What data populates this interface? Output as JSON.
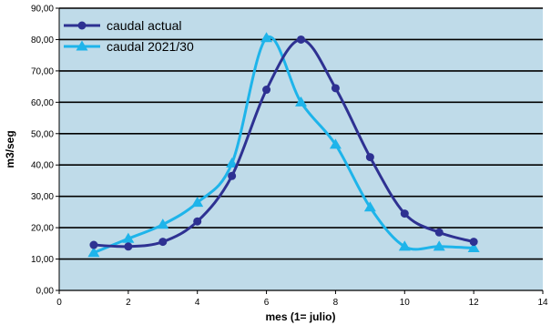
{
  "chart_data": {
    "type": "line",
    "xlabel": "mes (1= julio)",
    "ylabel": "m3/seg",
    "xlim": [
      0,
      14
    ],
    "ylim": [
      0,
      90
    ],
    "x_ticks": [
      "0",
      "2",
      "4",
      "6",
      "8",
      "10",
      "12",
      "14"
    ],
    "y_ticks": [
      "0,00",
      "10,00",
      "20,00",
      "30,00",
      "40,00",
      "50,00",
      "60,00",
      "70,00",
      "80,00",
      "90,00"
    ],
    "grid": "horizontal",
    "legend_position": "top-left",
    "plot_background": "#bfdbe9",
    "series": [
      {
        "name": "caudal actual",
        "color": "#2e3192",
        "marker": "circle",
        "x": [
          1,
          2,
          3,
          4,
          5,
          6,
          7,
          8,
          9,
          10,
          11,
          12
        ],
        "y": [
          14.5,
          14.0,
          15.5,
          22.0,
          36.5,
          64.0,
          80.0,
          64.5,
          42.5,
          24.5,
          18.5,
          15.5
        ]
      },
      {
        "name": "caudal 2021/30",
        "color": "#1eb4ea",
        "marker": "triangle",
        "x": [
          1,
          2,
          3,
          4,
          5,
          6,
          7,
          8,
          9,
          10,
          11,
          12
        ],
        "y": [
          12.0,
          16.5,
          21.0,
          28.0,
          40.5,
          80.5,
          60.0,
          46.5,
          26.5,
          14.0,
          14.0,
          13.5
        ]
      }
    ]
  }
}
